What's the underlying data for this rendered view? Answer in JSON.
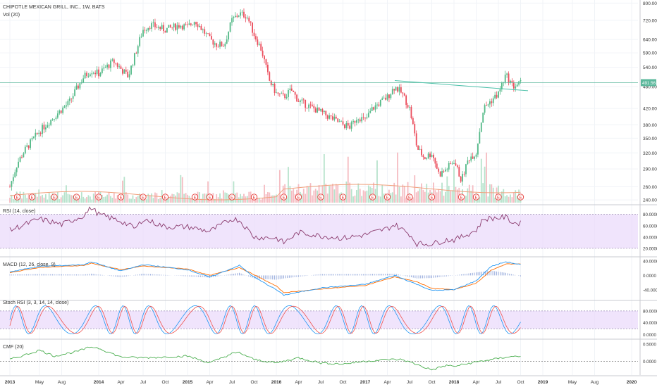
{
  "header": {
    "symbol_title": "CHIPOTLE MEXICAN GRILL, INC., 1W, BATS",
    "volume_label": "Vol (20)"
  },
  "indicators": {
    "rsi_label": "RSI (14, close)",
    "macd_label": "MACD (12, 26, close, 9)",
    "stoch_label": "Stoch RSI (3, 3, 14, 14, close)",
    "cmf_label": "CMF (20)"
  },
  "colors": {
    "up": "#53b987",
    "down": "#eb4d5c",
    "volume_ma": "#f0a07c",
    "trendline": "#4bc0a8",
    "price_line": "#5cb89c",
    "rsi_line": "#8a3a6d",
    "band_fill": "#e9d8fb",
    "macd_line": "#2196f3",
    "signal_line": "#ff6d00",
    "hist": "#4f6fc4",
    "stoch_k": "#2196f3",
    "stoch_d": "#ef5350",
    "cmf_line": "#4caf50",
    "earnings_marker": "#e53935"
  },
  "earnings_marker_text": "E",
  "chart_data": [
    {
      "type": "candlestick",
      "title": "CHIPOTLE MEXICAN GRILL, INC., 1W, BATS",
      "x_ticks": [
        "2013",
        "May",
        "Aug",
        "2014",
        "Apr",
        "Jul",
        "Oct",
        "2015",
        "Apr",
        "Jul",
        "Oct",
        "2016",
        "Apr",
        "Jul",
        "Oct",
        "2017",
        "Apr",
        "Jul",
        "Oct",
        "2018",
        "Apr",
        "Jul",
        "Oct",
        "2019",
        "May",
        "Aug",
        "2020"
      ],
      "y_ticks": [
        "800.00",
        "720.00",
        "640.00",
        "590.00",
        "540.00",
        "480.00",
        "420.00",
        "380.00",
        "350.00",
        "320.00",
        "290.00",
        "260.00",
        "240.00"
      ],
      "y_scale": "log",
      "ylim": [
        234,
        815
      ],
      "last_price_label": "491.56",
      "price_keypoints": [
        [
          "2013",
          260
        ],
        [
          "Feb 2013",
          300
        ],
        [
          "Mar 2013",
          325
        ],
        [
          "May 2013",
          365
        ],
        [
          "Jul 2013",
          400
        ],
        [
          "Sep 2013",
          435
        ],
        [
          "Nov 2013",
          510
        ],
        [
          "Dec 2013",
          530
        ],
        [
          "Jan 2014",
          520
        ],
        [
          "Mar 2014",
          560
        ],
        [
          "May 2014",
          510
        ],
        [
          "Jun 2014",
          590
        ],
        [
          "Jul 2014",
          680
        ],
        [
          "Aug 2014",
          700
        ],
        [
          "Oct 2014",
          680
        ],
        [
          "Dec 2014",
          700
        ],
        [
          "2015",
          690
        ],
        [
          "Feb 2015",
          720
        ],
        [
          "Apr 2015",
          640
        ],
        [
          "May 2015",
          620
        ],
        [
          "Jun 2015",
          620
        ],
        [
          "Jul 2015",
          720
        ],
        [
          "Aug 2015",
          750
        ],
        [
          "Sep 2015",
          740
        ],
        [
          "Oct 2015",
          660
        ],
        [
          "Nov 2015",
          600
        ],
        [
          "Dec 2015",
          500
        ],
        [
          "2016",
          460
        ],
        [
          "Feb 2016",
          450
        ],
        [
          "Mar 2016",
          470
        ],
        [
          "Apr 2016",
          440
        ],
        [
          "Jun 2016",
          420
        ],
        [
          "Jul 2016",
          410
        ],
        [
          "Aug 2016",
          400
        ],
        [
          "Oct 2016",
          380
        ],
        [
          "Nov 2016",
          375
        ],
        [
          "Dec 2016",
          400
        ],
        [
          "2017",
          390
        ],
        [
          "Feb 2017",
          420
        ],
        [
          "Apr 2017",
          450
        ],
        [
          "May 2017",
          480
        ],
        [
          "Jun 2017",
          460
        ],
        [
          "Jul 2017",
          420
        ],
        [
          "Aug 2017",
          330
        ],
        [
          "Sep 2017",
          310
        ],
        [
          "Oct 2017",
          320
        ],
        [
          "Nov 2017",
          280
        ],
        [
          "Dec 2017",
          290
        ],
        [
          "2018",
          305
        ],
        [
          "Feb 2018",
          270
        ],
        [
          "Mar 2018",
          310
        ],
        [
          "Apr 2018",
          320
        ],
        [
          "May 2018",
          420
        ],
        [
          "Jun 2018",
          440
        ],
        [
          "Jul 2018",
          460
        ],
        [
          "Aug 2018",
          515
        ],
        [
          "Sep 2018",
          480
        ],
        [
          "Oct 2018",
          491
        ]
      ],
      "horizontal_line": {
        "label": "491.56",
        "value": 491.56
      },
      "trendline": {
        "from": [
          "May 2017",
          498
        ],
        "to": [
          "Nov 2018",
          468
        ]
      },
      "earnings_events": [
        "Feb 2013",
        "Apr 2013",
        "Jul 2013",
        "Oct 2013",
        "Jan 2014",
        "Apr 2014",
        "Jul 2014",
        "Oct 2014",
        "Feb 2015",
        "Apr 2015",
        "Jul 2015",
        "Oct 2015",
        "Feb 2016",
        "Apr 2016",
        "Jul 2016",
        "Oct 2016",
        "Feb 2017",
        "Apr 2017",
        "Jul 2017",
        "Oct 2017",
        "Feb 2018",
        "Apr 2018",
        "Jul 2018",
        "Oct 2018"
      ]
    },
    {
      "type": "bar",
      "title": "Vol (20)",
      "note": "weekly volume histogram with 20-period moving average"
    },
    {
      "type": "line",
      "title": "RSI (14, close)",
      "y_ticks": [
        "80.0000",
        "60.0000",
        "40.0000",
        "20.0000"
      ],
      "ylim": [
        10,
        92
      ],
      "band": [
        20,
        80
      ],
      "keypoints": [
        [
          "2013",
          52
        ],
        [
          "May 2013",
          72
        ],
        [
          "Aug 2013",
          62
        ],
        [
          "Nov 2013",
          78
        ],
        [
          "Dec 2013",
          92
        ],
        [
          "2014",
          80
        ],
        [
          "Apr 2014",
          68
        ],
        [
          "Jun 2014",
          55
        ],
        [
          "Jul 2014",
          72
        ],
        [
          "Oct 2014",
          58
        ],
        [
          "2015",
          58
        ],
        [
          "Apr 2015",
          50
        ],
        [
          "Jul 2015",
          72
        ],
        [
          "Aug 2015",
          70
        ],
        [
          "Oct 2015",
          40
        ],
        [
          "2016",
          38
        ],
        [
          "Feb 2016",
          30
        ],
        [
          "Apr 2016",
          48
        ],
        [
          "Jul 2016",
          42
        ],
        [
          "Oct 2016",
          38
        ],
        [
          "2017",
          44
        ],
        [
          "Apr 2017",
          55
        ],
        [
          "May 2017",
          62
        ],
        [
          "Jul 2017",
          45
        ],
        [
          "Aug 2017",
          28
        ],
        [
          "Oct 2017",
          28
        ],
        [
          "Dec 2017",
          35
        ],
        [
          "2018",
          35
        ],
        [
          "Feb 2018",
          40
        ],
        [
          "Apr 2018",
          52
        ],
        [
          "May 2018",
          72
        ],
        [
          "Jul 2018",
          74
        ],
        [
          "Aug 2018",
          75
        ],
        [
          "Sep 2018",
          65
        ],
        [
          "Oct 2018",
          64
        ]
      ]
    },
    {
      "type": "line",
      "title": "MACD (12, 26, close, 9)",
      "y_ticks": [
        "40.0000",
        "0.0000",
        "-40.0000"
      ],
      "ylim": [
        -62,
        44
      ],
      "series": [
        {
          "name": "MACD",
          "keypoints": [
            [
              "2013",
              10
            ],
            [
              "May 2013",
              25
            ],
            [
              "Nov 2013",
              30
            ],
            [
              "Dec 2013",
              38
            ],
            [
              "Apr 2014",
              12
            ],
            [
              "Jul 2014",
              30
            ],
            [
              "2015",
              16
            ],
            [
              "Apr 2015",
              -5
            ],
            [
              "Aug 2015",
              28
            ],
            [
              "Oct 2015",
              -5
            ],
            [
              "2016",
              -40
            ],
            [
              "Feb 2016",
              -55
            ],
            [
              "Jul 2016",
              -35
            ],
            [
              "2017",
              -25
            ],
            [
              "May 2017",
              0
            ],
            [
              "Aug 2017",
              -25
            ],
            [
              "Oct 2017",
              -42
            ],
            [
              "2018",
              -40
            ],
            [
              "Apr 2018",
              -15
            ],
            [
              "Jun 2018",
              25
            ],
            [
              "Aug 2018",
              38
            ],
            [
              "Oct 2018",
              30
            ]
          ]
        },
        {
          "name": "Signal",
          "keypoints": [
            [
              "2013",
              8
            ],
            [
              "May 2013",
              22
            ],
            [
              "Nov 2013",
              28
            ],
            [
              "Dec 2013",
              34
            ],
            [
              "Apr 2014",
              16
            ],
            [
              "Jul 2014",
              26
            ],
            [
              "2015",
              18
            ],
            [
              "Apr 2015",
              0
            ],
            [
              "Aug 2015",
              22
            ],
            [
              "Oct 2015",
              2
            ],
            [
              "2016",
              -30
            ],
            [
              "Feb 2016",
              -48
            ],
            [
              "Jul 2016",
              -38
            ],
            [
              "2017",
              -28
            ],
            [
              "May 2017",
              -4
            ],
            [
              "Aug 2017",
              -18
            ],
            [
              "Oct 2017",
              -36
            ],
            [
              "2018",
              -40
            ],
            [
              "Apr 2018",
              -22
            ],
            [
              "Jun 2018",
              14
            ],
            [
              "Aug 2018",
              32
            ],
            [
              "Oct 2018",
              32
            ]
          ]
        }
      ]
    },
    {
      "type": "line",
      "title": "Stoch RSI (3, 3, 14, 14, close)",
      "y_ticks": [
        "80.0000",
        "40.0000",
        "0.0000"
      ],
      "ylim": [
        -6,
        106
      ],
      "band": [
        20,
        80
      ],
      "series": [
        {
          "name": "K"
        },
        {
          "name": "D"
        }
      ],
      "note": "oscillates between 0 and 100 roughly every few months"
    },
    {
      "type": "line",
      "title": "CMF (20)",
      "y_ticks": [
        "0.5000",
        "0.0000"
      ],
      "ylim": [
        -0.34,
        0.56
      ],
      "keypoints": [
        [
          "2013",
          0.05
        ],
        [
          "Mar 2013",
          0.18
        ],
        [
          "May 2013",
          0.32
        ],
        [
          "Jul 2013",
          0.15
        ],
        [
          "Oct 2013",
          0.28
        ],
        [
          "Dec 2013",
          0.42
        ],
        [
          "2014",
          0.38
        ],
        [
          "Apr 2014",
          0.12
        ],
        [
          "Jul 2014",
          0.1
        ],
        [
          "Oct 2014",
          0.12
        ],
        [
          "2015",
          0.15
        ],
        [
          "Apr 2015",
          -0.05
        ],
        [
          "Jul 2015",
          0.22
        ],
        [
          "Aug 2015",
          0.25
        ],
        [
          "Oct 2015",
          0.05
        ],
        [
          "2016",
          -0.05
        ],
        [
          "Apr 2016",
          0.1
        ],
        [
          "Jul 2016",
          -0.05
        ],
        [
          "Oct 2016",
          -0.08
        ],
        [
          "2017",
          0.0
        ],
        [
          "Apr 2017",
          0.05
        ],
        [
          "Jun 2017",
          0.05
        ],
        [
          "Aug 2017",
          -0.1
        ],
        [
          "Oct 2017",
          -0.25
        ],
        [
          "Dec 2017",
          -0.12
        ],
        [
          "2018",
          -0.15
        ],
        [
          "Apr 2018",
          -0.02
        ],
        [
          "Jul 2018",
          0.08
        ],
        [
          "Aug 2018",
          0.12
        ],
        [
          "Oct 2018",
          0.15
        ]
      ]
    }
  ]
}
